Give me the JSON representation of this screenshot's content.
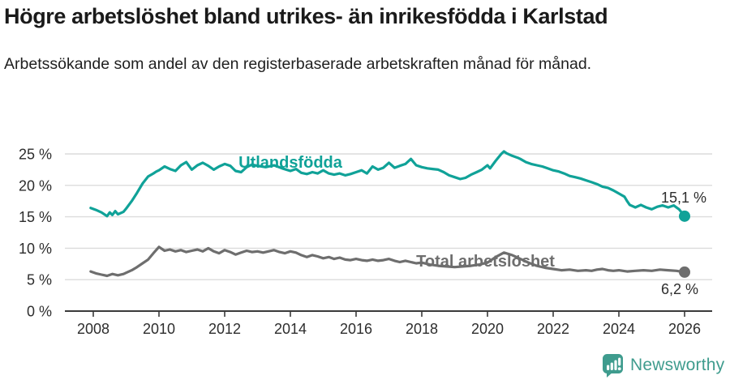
{
  "header": {
    "title": "Högre arbetslöshet bland utrikes- än inrikesfödda i Karlstad",
    "subtitle": "Arbetssökande som andel av den registerbaserade arbetskraften månad för månad."
  },
  "footer": {
    "brand": "Newsworthy",
    "logo_icon": "bar-chart-speech-bubble-icon",
    "brand_color": "#3f9c8e"
  },
  "chart_data": {
    "type": "line",
    "title": "Högre arbetslöshet bland utrikes- än inrikesfödda i Karlstad",
    "subtitle": "Arbetssökande som andel av den registerbaserade arbetskraften månad för månad.",
    "unit": "%",
    "grid": "horizontal",
    "legend": "inline-labels",
    "x_axis": {
      "ticks": [
        2008,
        2010,
        2012,
        2014,
        2016,
        2018,
        2020,
        2022,
        2024,
        2026
      ],
      "range": [
        2007.9,
        2026.1
      ]
    },
    "y_axis": {
      "ticks": [
        0,
        5,
        10,
        15,
        20,
        25
      ],
      "tick_suffix": " %",
      "range": [
        0,
        26
      ]
    },
    "colors": {
      "axis": "#3b3b3b",
      "gridline": "#dcdcdc",
      "tick_text": "#2d2d2d",
      "end_label_text": "#2d2d2d"
    },
    "series": [
      {
        "name": "Utlandsfödda",
        "color": "#10a298",
        "end_label": "15,1 %",
        "end_value": 15.1,
        "label_pos": {
          "x": 2014.0,
          "y": 23.7
        },
        "points": [
          [
            2007.92,
            16.4
          ],
          [
            2008.08,
            16.1
          ],
          [
            2008.25,
            15.7
          ],
          [
            2008.42,
            15.1
          ],
          [
            2008.5,
            15.7
          ],
          [
            2008.58,
            15.3
          ],
          [
            2008.67,
            15.9
          ],
          [
            2008.75,
            15.4
          ],
          [
            2008.92,
            15.8
          ],
          [
            2009.0,
            16.3
          ],
          [
            2009.17,
            17.5
          ],
          [
            2009.33,
            18.8
          ],
          [
            2009.5,
            20.3
          ],
          [
            2009.67,
            21.4
          ],
          [
            2009.83,
            21.9
          ],
          [
            2009.92,
            22.2
          ],
          [
            2010.0,
            22.4
          ],
          [
            2010.17,
            23.0
          ],
          [
            2010.33,
            22.6
          ],
          [
            2010.5,
            22.3
          ],
          [
            2010.67,
            23.2
          ],
          [
            2010.83,
            23.7
          ],
          [
            2011.0,
            22.5
          ],
          [
            2011.17,
            23.2
          ],
          [
            2011.33,
            23.6
          ],
          [
            2011.5,
            23.1
          ],
          [
            2011.67,
            22.5
          ],
          [
            2011.83,
            23.0
          ],
          [
            2012.0,
            23.4
          ],
          [
            2012.17,
            23.1
          ],
          [
            2012.33,
            22.3
          ],
          [
            2012.5,
            22.1
          ],
          [
            2012.67,
            22.9
          ],
          [
            2012.83,
            23.3
          ],
          [
            2013.0,
            23.1
          ],
          [
            2013.25,
            22.9
          ],
          [
            2013.5,
            23.2
          ],
          [
            2013.75,
            22.7
          ],
          [
            2014.0,
            22.3
          ],
          [
            2014.17,
            22.6
          ],
          [
            2014.33,
            22.0
          ],
          [
            2014.5,
            21.8
          ],
          [
            2014.67,
            22.1
          ],
          [
            2014.83,
            21.9
          ],
          [
            2015.0,
            22.4
          ],
          [
            2015.17,
            21.9
          ],
          [
            2015.33,
            21.7
          ],
          [
            2015.5,
            21.9
          ],
          [
            2015.67,
            21.6
          ],
          [
            2015.83,
            21.8
          ],
          [
            2016.0,
            22.1
          ],
          [
            2016.17,
            22.4
          ],
          [
            2016.33,
            21.9
          ],
          [
            2016.5,
            23.0
          ],
          [
            2016.67,
            22.5
          ],
          [
            2016.83,
            22.8
          ],
          [
            2017.0,
            23.6
          ],
          [
            2017.17,
            22.8
          ],
          [
            2017.33,
            23.1
          ],
          [
            2017.5,
            23.4
          ],
          [
            2017.67,
            24.2
          ],
          [
            2017.83,
            23.2
          ],
          [
            2018.0,
            22.9
          ],
          [
            2018.17,
            22.7
          ],
          [
            2018.33,
            22.6
          ],
          [
            2018.5,
            22.5
          ],
          [
            2018.67,
            22.1
          ],
          [
            2018.83,
            21.6
          ],
          [
            2019.0,
            21.3
          ],
          [
            2019.17,
            21.0
          ],
          [
            2019.33,
            21.2
          ],
          [
            2019.5,
            21.7
          ],
          [
            2019.67,
            22.1
          ],
          [
            2019.83,
            22.5
          ],
          [
            2020.0,
            23.2
          ],
          [
            2020.08,
            22.7
          ],
          [
            2020.25,
            23.9
          ],
          [
            2020.42,
            25.0
          ],
          [
            2020.5,
            25.4
          ],
          [
            2020.58,
            25.1
          ],
          [
            2020.75,
            24.7
          ],
          [
            2020.92,
            24.4
          ],
          [
            2021.0,
            24.2
          ],
          [
            2021.17,
            23.7
          ],
          [
            2021.33,
            23.4
          ],
          [
            2021.5,
            23.2
          ],
          [
            2021.67,
            23.0
          ],
          [
            2021.83,
            22.7
          ],
          [
            2022.0,
            22.4
          ],
          [
            2022.17,
            22.2
          ],
          [
            2022.33,
            21.9
          ],
          [
            2022.5,
            21.5
          ],
          [
            2022.67,
            21.3
          ],
          [
            2022.83,
            21.1
          ],
          [
            2023.0,
            20.8
          ],
          [
            2023.17,
            20.5
          ],
          [
            2023.33,
            20.2
          ],
          [
            2023.5,
            19.8
          ],
          [
            2023.67,
            19.6
          ],
          [
            2023.83,
            19.2
          ],
          [
            2024.0,
            18.7
          ],
          [
            2024.17,
            18.2
          ],
          [
            2024.25,
            17.5
          ],
          [
            2024.33,
            16.9
          ],
          [
            2024.5,
            16.5
          ],
          [
            2024.67,
            16.9
          ],
          [
            2024.83,
            16.5
          ],
          [
            2025.0,
            16.2
          ],
          [
            2025.17,
            16.6
          ],
          [
            2025.33,
            16.8
          ],
          [
            2025.5,
            16.5
          ],
          [
            2025.67,
            16.8
          ],
          [
            2025.83,
            16.2
          ],
          [
            2026.0,
            15.1
          ]
        ]
      },
      {
        "name": "Total arbetslöshet",
        "color": "#6e6e6e",
        "end_label": "6,2 %",
        "end_value": 6.2,
        "label_pos": {
          "x": 2019.94,
          "y": 8.0
        },
        "points": [
          [
            2007.92,
            6.3
          ],
          [
            2008.08,
            6.0
          ],
          [
            2008.25,
            5.8
          ],
          [
            2008.42,
            5.6
          ],
          [
            2008.58,
            5.9
          ],
          [
            2008.75,
            5.7
          ],
          [
            2008.92,
            5.9
          ],
          [
            2009.0,
            6.1
          ],
          [
            2009.17,
            6.5
          ],
          [
            2009.33,
            7.0
          ],
          [
            2009.5,
            7.6
          ],
          [
            2009.67,
            8.2
          ],
          [
            2009.83,
            9.2
          ],
          [
            2010.0,
            10.2
          ],
          [
            2010.17,
            9.6
          ],
          [
            2010.33,
            9.8
          ],
          [
            2010.5,
            9.5
          ],
          [
            2010.67,
            9.7
          ],
          [
            2010.83,
            9.4
          ],
          [
            2011.0,
            9.6
          ],
          [
            2011.17,
            9.8
          ],
          [
            2011.33,
            9.5
          ],
          [
            2011.5,
            10.0
          ],
          [
            2011.67,
            9.5
          ],
          [
            2011.83,
            9.2
          ],
          [
            2012.0,
            9.7
          ],
          [
            2012.17,
            9.4
          ],
          [
            2012.33,
            9.0
          ],
          [
            2012.5,
            9.3
          ],
          [
            2012.67,
            9.6
          ],
          [
            2012.83,
            9.4
          ],
          [
            2013.0,
            9.5
          ],
          [
            2013.17,
            9.3
          ],
          [
            2013.33,
            9.5
          ],
          [
            2013.5,
            9.7
          ],
          [
            2013.67,
            9.4
          ],
          [
            2013.83,
            9.2
          ],
          [
            2014.0,
            9.5
          ],
          [
            2014.17,
            9.3
          ],
          [
            2014.33,
            8.9
          ],
          [
            2014.5,
            8.6
          ],
          [
            2014.67,
            8.9
          ],
          [
            2014.83,
            8.7
          ],
          [
            2015.0,
            8.4
          ],
          [
            2015.17,
            8.6
          ],
          [
            2015.33,
            8.3
          ],
          [
            2015.5,
            8.5
          ],
          [
            2015.67,
            8.2
          ],
          [
            2015.83,
            8.1
          ],
          [
            2016.0,
            8.3
          ],
          [
            2016.17,
            8.1
          ],
          [
            2016.33,
            8.0
          ],
          [
            2016.5,
            8.2
          ],
          [
            2016.67,
            8.0
          ],
          [
            2016.83,
            8.1
          ],
          [
            2017.0,
            8.3
          ],
          [
            2017.17,
            8.0
          ],
          [
            2017.33,
            7.8
          ],
          [
            2017.5,
            8.0
          ],
          [
            2017.67,
            7.8
          ],
          [
            2017.83,
            7.6
          ],
          [
            2018.0,
            7.7
          ],
          [
            2018.25,
            7.4
          ],
          [
            2018.5,
            7.2
          ],
          [
            2018.75,
            7.1
          ],
          [
            2019.0,
            7.0
          ],
          [
            2019.25,
            7.1
          ],
          [
            2019.5,
            7.2
          ],
          [
            2019.75,
            7.4
          ],
          [
            2020.0,
            7.7
          ],
          [
            2020.25,
            8.6
          ],
          [
            2020.5,
            9.3
          ],
          [
            2020.75,
            8.9
          ],
          [
            2021.0,
            8.3
          ],
          [
            2021.25,
            7.7
          ],
          [
            2021.5,
            7.2
          ],
          [
            2021.75,
            6.9
          ],
          [
            2022.0,
            6.7
          ],
          [
            2022.25,
            6.5
          ],
          [
            2022.5,
            6.6
          ],
          [
            2022.75,
            6.4
          ],
          [
            2023.0,
            6.5
          ],
          [
            2023.17,
            6.4
          ],
          [
            2023.33,
            6.6
          ],
          [
            2023.5,
            6.7
          ],
          [
            2023.67,
            6.5
          ],
          [
            2023.83,
            6.4
          ],
          [
            2024.0,
            6.5
          ],
          [
            2024.25,
            6.3
          ],
          [
            2024.5,
            6.4
          ],
          [
            2024.75,
            6.5
          ],
          [
            2025.0,
            6.4
          ],
          [
            2025.25,
            6.6
          ],
          [
            2025.5,
            6.5
          ],
          [
            2025.75,
            6.4
          ],
          [
            2026.0,
            6.2
          ]
        ]
      }
    ]
  }
}
